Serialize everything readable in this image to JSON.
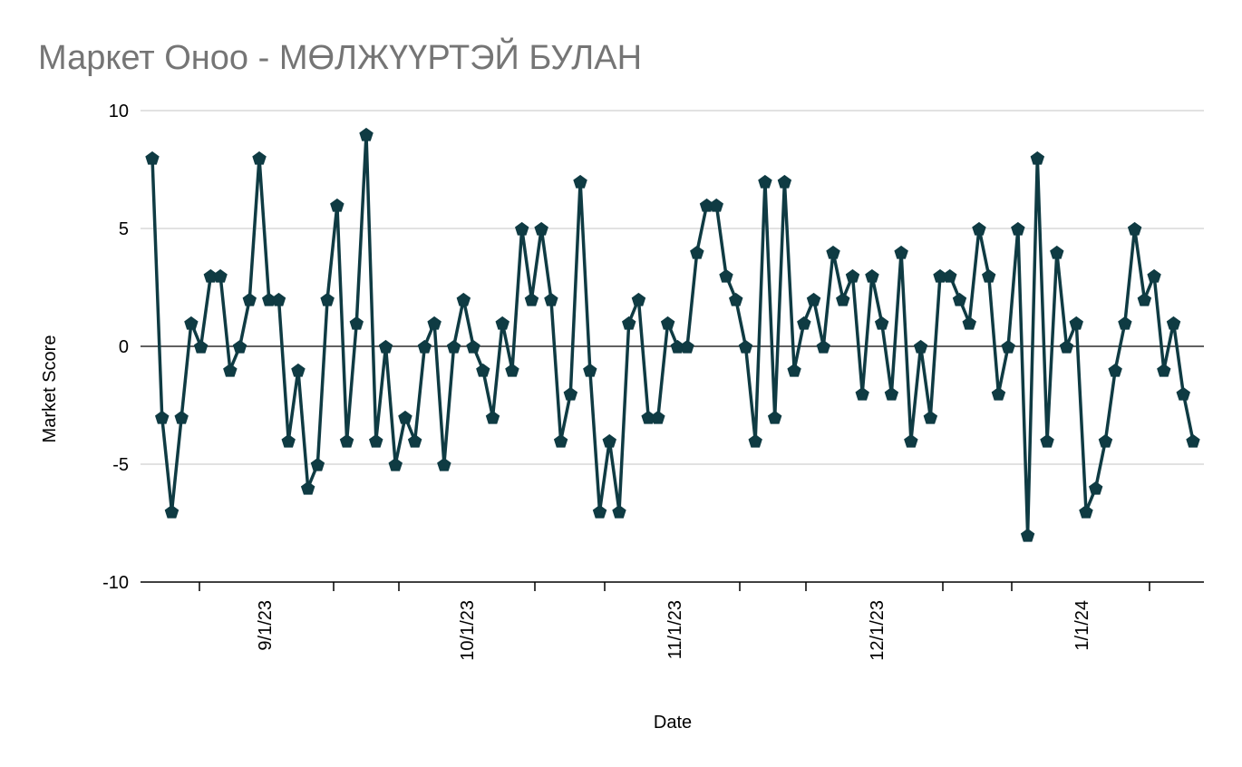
{
  "chart_data": {
    "type": "line",
    "title": "Маркет Оноо - МӨЛЖҮҮРТЭЙ БУЛАН",
    "xlabel": "Date",
    "ylabel": "Market Score",
    "ylim": [
      -10,
      10
    ],
    "yticks": [
      "10",
      "5",
      "0",
      "-5",
      "-10"
    ],
    "xticks": [
      "9/1/23",
      "10/1/23",
      "11/1/23",
      "12/1/23",
      "1/1/24"
    ],
    "grid": true,
    "colors": {
      "line": "#0f3b43",
      "grid": "#c6c6c6",
      "zero": "#000000",
      "title": "#757575"
    },
    "marker": "pentagon",
    "series": [
      {
        "values": [
          8,
          -3,
          -7,
          -3,
          1,
          0,
          3,
          3,
          -1,
          0,
          2,
          8,
          2,
          2,
          -4,
          -1,
          -6,
          -5,
          2,
          6,
          -4,
          1,
          9,
          -4,
          0,
          -5,
          -3,
          -4,
          0,
          1,
          -5,
          0,
          2,
          0,
          -1,
          -3,
          1,
          -1,
          5,
          2,
          5,
          2,
          -4,
          -2,
          7,
          -1,
          -7,
          -4,
          -7,
          1,
          2,
          -3,
          -3,
          1,
          0,
          0,
          4,
          6,
          6,
          3,
          2,
          0,
          -4,
          7,
          -3,
          7,
          -1,
          1,
          2,
          0,
          4,
          2,
          3,
          -2,
          3,
          1,
          -2,
          4,
          -4,
          0,
          -3,
          3,
          3,
          2,
          1,
          5,
          3,
          -2,
          0,
          5,
          -8,
          8,
          -4,
          4,
          0,
          1,
          -7,
          -6,
          -4,
          -1,
          1,
          5,
          2,
          3,
          -1,
          1,
          -2,
          -4
        ]
      }
    ]
  }
}
